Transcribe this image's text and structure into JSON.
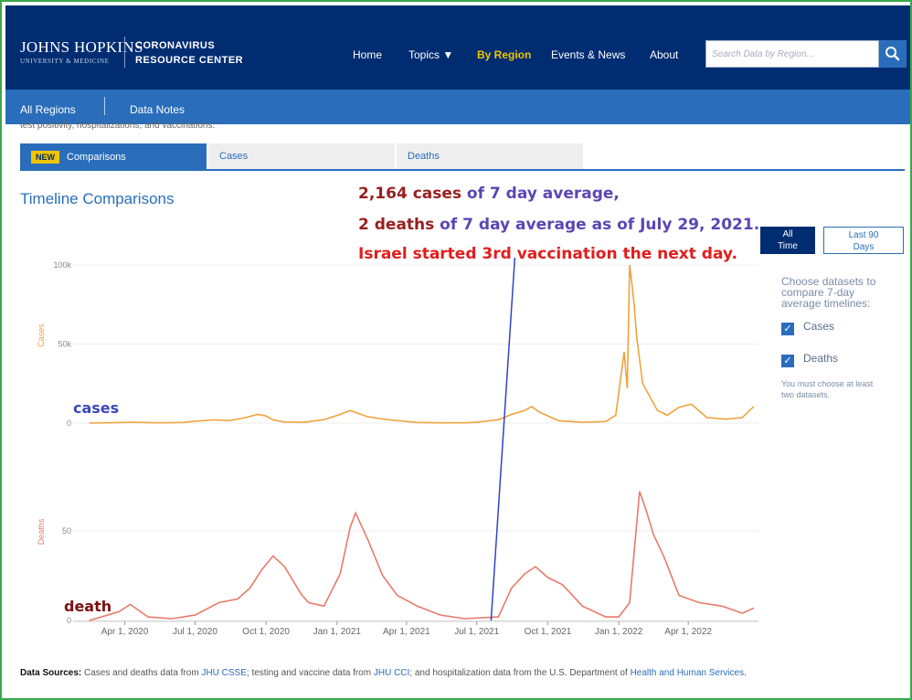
{
  "header": {
    "logo_line1": "JOHNS HOPKINS",
    "logo_line2": "UNIVERSITY & MEDICINE",
    "center_line1": "CORONAVIRUS",
    "center_line2": "RESOURCE CENTER",
    "nav": [
      "Home",
      "Topics ▼",
      "By Region",
      "Events & News",
      "About"
    ],
    "active_nav": "By Region",
    "search_placeholder": "Search Data by Region..."
  },
  "subnav": {
    "items": [
      "All Regions",
      "Data Notes"
    ]
  },
  "cut_text": "test positivity, hospitalizations, and vaccinations.",
  "tabs": {
    "badge": "NEW",
    "items": [
      "Comparisons",
      "Cases",
      "Deaths"
    ],
    "active": "Comparisons"
  },
  "timeline_title": "Timeline Comparisons",
  "annotation": {
    "line1_num": "2,164 cases",
    "line1_text": " of 7 day average,",
    "line2_num": "2 deaths",
    "line2_text": " of 7 day average as of July 29, 2021.",
    "line3": "Israel started 3rd vaccination the next day.",
    "label_cases": "cases",
    "label_death": "death"
  },
  "range_buttons": {
    "all": [
      "All",
      "Time"
    ],
    "last": [
      "Last 90",
      "Days"
    ]
  },
  "datasets": {
    "prompt": "Choose datasets to compare 7-day average timelines:",
    "options": [
      "Cases",
      "Deaths"
    ],
    "note": "You must choose at least two datasets."
  },
  "footer": {
    "label": "Data Sources:",
    "t1": " Cases and deaths data from ",
    "l1": "JHU CSSE",
    "t2": "; testing and vaccine data from ",
    "l2": "JHU CCI",
    "t3": "; and hospitalization data from the U.S. Department of ",
    "l3": "Health and Human Services",
    "t4": "."
  },
  "colors": {
    "cases": "#f0a23c",
    "deaths": "#e87a6a",
    "marker_line": "#3342c8",
    "header_bg": "#002d72",
    "subnav_bg": "#2a6ebb",
    "accent_yellow": "#f1c400"
  },
  "chart_data": [
    {
      "type": "line",
      "ylabel": "Cases",
      "ytick_labels": [
        "100k",
        "50k",
        "0"
      ],
      "ylim": [
        0,
        100000
      ],
      "series": [
        {
          "name": "Cases",
          "x": [
            "2020-02-15",
            "2020-03-20",
            "2020-04-10",
            "2020-05-15",
            "2020-06-15",
            "2020-07-01",
            "2020-07-25",
            "2020-08-15",
            "2020-09-05",
            "2020-09-20",
            "2020-10-01",
            "2020-10-10",
            "2020-10-25",
            "2020-11-20",
            "2020-12-15",
            "2021-01-05",
            "2021-01-18",
            "2021-02-10",
            "2021-03-10",
            "2021-04-15",
            "2021-05-15",
            "2021-06-15",
            "2021-07-01",
            "2021-07-29",
            "2021-08-15",
            "2021-09-01",
            "2021-09-10",
            "2021-09-20",
            "2021-10-15",
            "2021-11-15",
            "2021-12-15",
            "2021-12-28",
            "2022-01-08",
            "2022-01-12",
            "2022-01-15",
            "2022-01-18",
            "2022-01-21",
            "2022-01-24",
            "2022-02-01",
            "2022-02-20",
            "2022-03-05",
            "2022-03-20",
            "2022-04-05",
            "2022-04-25",
            "2022-05-20",
            "2022-06-10",
            "2022-06-25"
          ],
          "values": [
            0,
            300,
            600,
            150,
            400,
            1200,
            2000,
            1600,
            3500,
            5500,
            4500,
            2000,
            700,
            500,
            2200,
            5500,
            8000,
            4000,
            2000,
            400,
            200,
            200,
            500,
            2164,
            5500,
            8000,
            10500,
            7000,
            1500,
            600,
            1000,
            5000,
            45000,
            22000,
            100000,
            88000,
            75000,
            55000,
            25000,
            8000,
            5000,
            10000,
            12000,
            3500,
            2500,
            3500,
            10500
          ]
        }
      ]
    },
    {
      "type": "line",
      "ylabel": "Deaths",
      "ytick_labels": [
        "50",
        "0"
      ],
      "ylim": [
        0,
        80
      ],
      "series": [
        {
          "name": "Deaths",
          "x": [
            "2020-02-15",
            "2020-03-25",
            "2020-04-08",
            "2020-05-01",
            "2020-06-01",
            "2020-07-01",
            "2020-08-01",
            "2020-08-25",
            "2020-09-10",
            "2020-09-25",
            "2020-10-10",
            "2020-10-25",
            "2020-11-15",
            "2020-11-25",
            "2020-12-15",
            "2021-01-05",
            "2021-01-18",
            "2021-01-25",
            "2021-02-10",
            "2021-03-01",
            "2021-03-20",
            "2021-04-15",
            "2021-05-15",
            "2021-06-15",
            "2021-07-29",
            "2021-08-15",
            "2021-09-01",
            "2021-09-15",
            "2021-10-01",
            "2021-10-20",
            "2021-11-15",
            "2021-12-15",
            "2022-01-01",
            "2022-01-15",
            "2022-01-28",
            "2022-02-05",
            "2022-02-15",
            "2022-03-01",
            "2022-03-20",
            "2022-04-15",
            "2022-05-15",
            "2022-06-10",
            "2022-06-25"
          ],
          "values": [
            0,
            5,
            9,
            2,
            1,
            3,
            10,
            12,
            18,
            28,
            36,
            30,
            15,
            10,
            8,
            26,
            52,
            60,
            45,
            25,
            14,
            8,
            3,
            1,
            2,
            18,
            26,
            30,
            24,
            20,
            8,
            2,
            2,
            10,
            72,
            62,
            48,
            35,
            14,
            10,
            8,
            4,
            7
          ]
        }
      ]
    }
  ],
  "x_axis": {
    "tick_labels": [
      "Apr 1, 2020",
      "Jul 1, 2020",
      "Oct 1, 2020",
      "Jan 1, 2021",
      "Apr 1, 2021",
      "Jul 1, 2021",
      "Oct 1, 2021",
      "Jan 1, 2022",
      "Apr 1, 2022"
    ],
    "tick_dates": [
      "2020-04-01",
      "2020-07-01",
      "2020-10-01",
      "2021-01-01",
      "2021-04-01",
      "2021-07-01",
      "2021-10-01",
      "2022-01-01",
      "2022-04-01"
    ],
    "marker_date": "2021-07-29"
  }
}
